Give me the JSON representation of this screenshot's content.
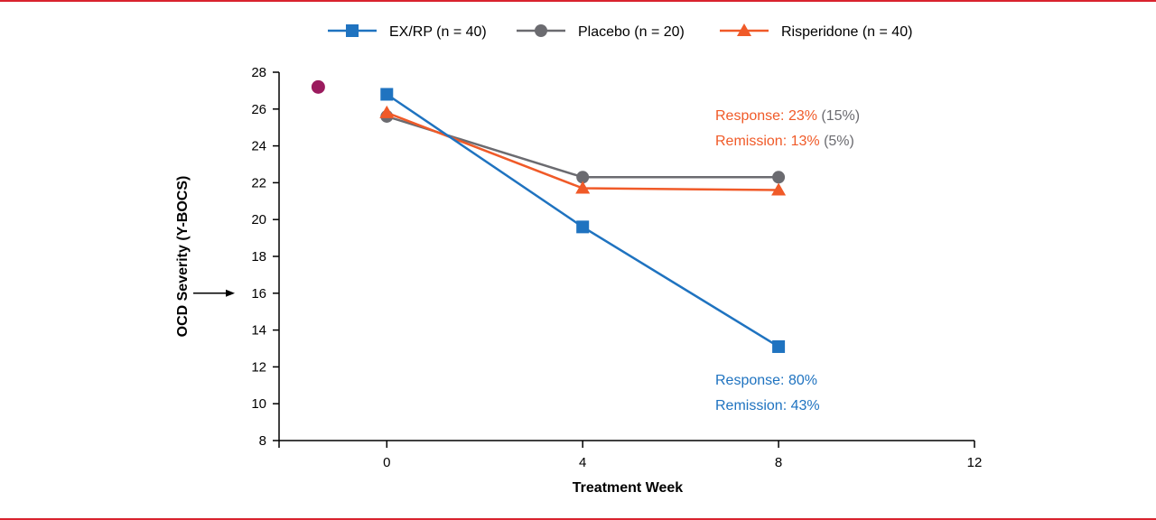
{
  "chart_data": {
    "type": "line",
    "xlabel": "Treatment Week",
    "ylabel": "OCD Severity (Y-BOCS)",
    "xlim": [
      -2.2,
      12
    ],
    "ylim": [
      8,
      28
    ],
    "xticks": [
      0,
      4,
      8,
      12
    ],
    "yticks": [
      8,
      10,
      12,
      14,
      16,
      18,
      20,
      22,
      24,
      26,
      28
    ],
    "grid": false,
    "legend_position": "top",
    "baseline_point": {
      "x": -1.4,
      "y": 27.2,
      "color": "#9b1b5e"
    },
    "arrow_marker_y": 16,
    "series": [
      {
        "name": "EX/RP (n = 40)",
        "color": "#1f73c0",
        "marker": "square",
        "x": [
          0,
          4,
          8
        ],
        "y": [
          26.8,
          19.6,
          13.1
        ]
      },
      {
        "name": "Placebo (n = 20)",
        "color": "#6b6b70",
        "marker": "circle",
        "x": [
          0,
          4,
          8
        ],
        "y": [
          25.6,
          22.3,
          22.3
        ]
      },
      {
        "name": "Risperidone (n = 40)",
        "color": "#f05a28",
        "marker": "triangle",
        "x": [
          0,
          4,
          8
        ],
        "y": [
          25.8,
          21.7,
          21.6
        ]
      }
    ],
    "annotations": {
      "risperidone": {
        "response": "Response: 23%",
        "response_placebo": "(15%)",
        "remission": "Remission: 13%",
        "remission_placebo": "(5%)"
      },
      "exrp": {
        "response": "Response: 80%",
        "remission": "Remission: 43%"
      }
    }
  }
}
